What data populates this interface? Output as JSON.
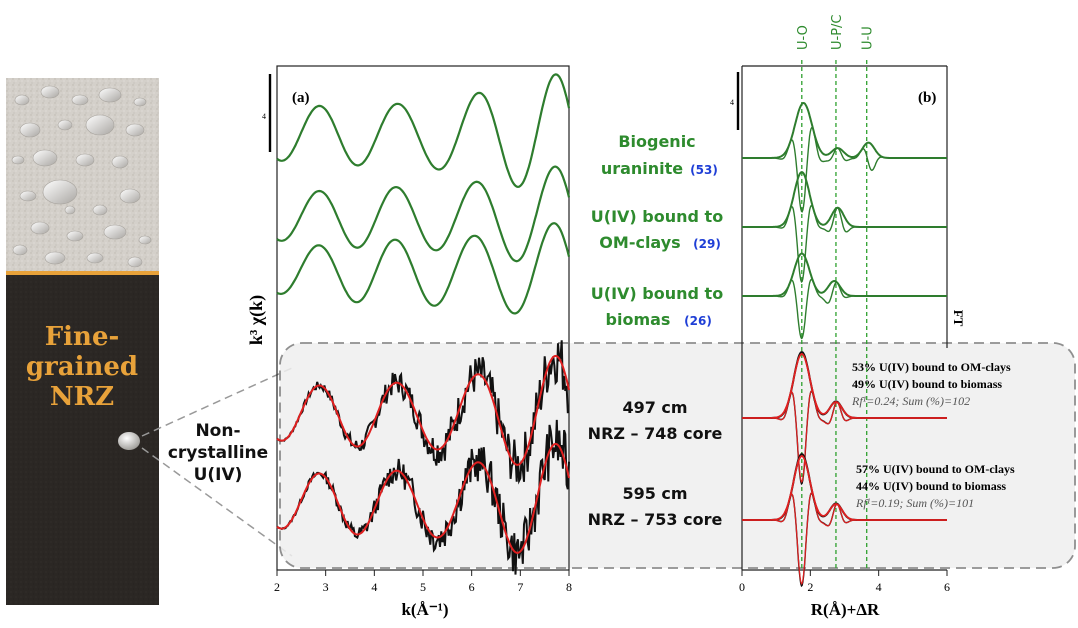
{
  "core": {
    "label_line1": "Fine-",
    "label_line2": "grained",
    "label_line3": "NRZ"
  },
  "callout": {
    "line1": "Non-",
    "line2": "crystalline",
    "line3": "U(IV)"
  },
  "colors": {
    "reference": "#2e7d2e",
    "sample": "#111111",
    "fit": "#e02020",
    "core_dark": "#2b2724",
    "core_light": "#d6d2cc",
    "core_text": "#e8a23a",
    "ref_text": "#2e8b2e",
    "ref_number": "#1f3fd6"
  },
  "references": [
    {
      "name_line1": "Biogenic",
      "name_line2": "uraninite",
      "ref": "53"
    },
    {
      "name_line1": "U(IV) bound to",
      "name_line2": "OM-clays",
      "ref": "29"
    },
    {
      "name_line1": "U(IV) bound to",
      "name_line2": "biomas",
      "ref": "26"
    }
  ],
  "samples": [
    {
      "depth": "497 cm",
      "core": "NRZ – 748 core",
      "fit_line1": "53% U(IV) bound to OM-clays",
      "fit_line2": "49% U(IV) bound to biomass",
      "fit_line3": "Rf¹=0.24; Sum (%)=102"
    },
    {
      "depth": "595 cm",
      "core": "NRZ – 753 core",
      "fit_line1": "57% U(IV) bound to OM-clays",
      "fit_line2": "44% U(IV) bound to biomass",
      "fit_line3": "Rf¹=0.19; Sum (%)=101"
    }
  ],
  "chart_data": [
    {
      "type": "line",
      "panel_label": "(a)",
      "xlabel": "k(Å⁻¹)",
      "ylabel": "k³ χ(k)",
      "xlim": [
        2,
        8
      ],
      "x_ticks": [
        "2",
        "3",
        "4",
        "5",
        "6",
        "7",
        "8"
      ],
      "scale_bar_label": "4",
      "series_order": [
        "Biogenic uraninite",
        "U(IV) bound to OM-clays",
        "U(IV) bound to biomas",
        "497 cm NRZ – 748 core",
        "595 cm NRZ – 753 core"
      ]
    },
    {
      "type": "line",
      "panel_label": "(b)",
      "xlabel": "R(Å)+ΔR",
      "ylabel": "FT",
      "xlim": [
        0,
        6
      ],
      "x_ticks": [
        "0",
        "2",
        "4",
        "6"
      ],
      "scale_bar_label": "4",
      "shell_markers": [
        {
          "label": "U-O",
          "r": 1.75
        },
        {
          "label": "U-P/C",
          "r": 2.75
        },
        {
          "label": "U-U",
          "r": 3.65
        }
      ]
    }
  ]
}
